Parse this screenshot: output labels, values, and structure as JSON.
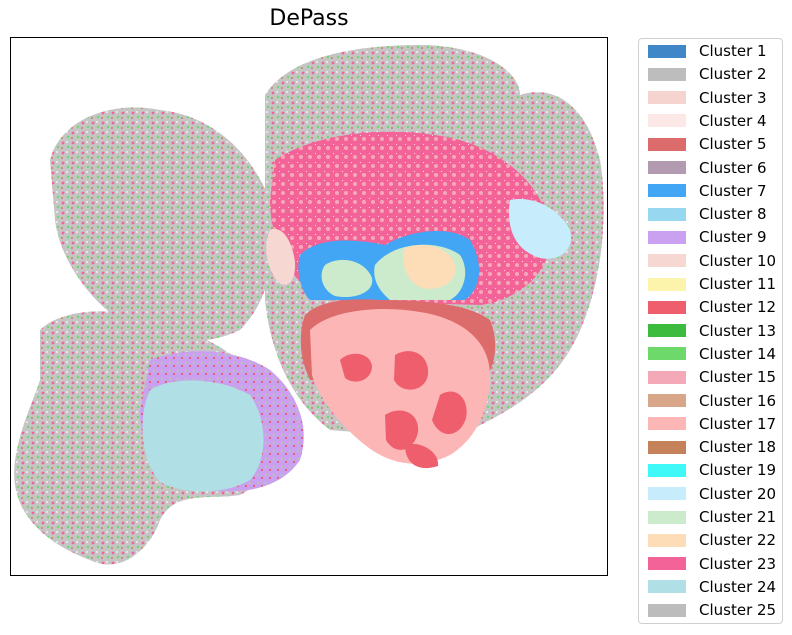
{
  "chart_data": {
    "type": "scatter",
    "title": "DePass",
    "xlabel": "",
    "ylabel": "",
    "grid": false,
    "axes_ticks": false,
    "legend_placement": "outside-right",
    "series": [
      {
        "name": "Cluster 1",
        "color": "#3f87c7"
      },
      {
        "name": "Cluster 2",
        "color": "#bdbdbd"
      },
      {
        "name": "Cluster 3",
        "color": "#f5d3cf"
      },
      {
        "name": "Cluster 4",
        "color": "#fde8e8"
      },
      {
        "name": "Cluster 5",
        "color": "#dc6b6b"
      },
      {
        "name": "Cluster 6",
        "color": "#b29ab0"
      },
      {
        "name": "Cluster 7",
        "color": "#42a6f5"
      },
      {
        "name": "Cluster 8",
        "color": "#98d7f0"
      },
      {
        "name": "Cluster 9",
        "color": "#c9a1f0"
      },
      {
        "name": "Cluster 10",
        "color": "#f6d7d2"
      },
      {
        "name": "Cluster 11",
        "color": "#fcf4aa"
      },
      {
        "name": "Cluster 12",
        "color": "#ee5e6c"
      },
      {
        "name": "Cluster 13",
        "color": "#3dbb3f"
      },
      {
        "name": "Cluster 14",
        "color": "#6cd96a"
      },
      {
        "name": "Cluster 15",
        "color": "#f3a9b8"
      },
      {
        "name": "Cluster 16",
        "color": "#d8a78a"
      },
      {
        "name": "Cluster 17",
        "color": "#fdb6b6"
      },
      {
        "name": "Cluster 18",
        "color": "#c5825a"
      },
      {
        "name": "Cluster 19",
        "color": "#3ff8f8"
      },
      {
        "name": "Cluster 20",
        "color": "#c7ecfb"
      },
      {
        "name": "Cluster 21",
        "color": "#ccebcc"
      },
      {
        "name": "Cluster 22",
        "color": "#fddcb8"
      },
      {
        "name": "Cluster 23",
        "color": "#f36397"
      },
      {
        "name": "Cluster 24",
        "color": "#b0dfe5"
      },
      {
        "name": "Cluster 25",
        "color": "#bcbcbc"
      }
    ]
  }
}
